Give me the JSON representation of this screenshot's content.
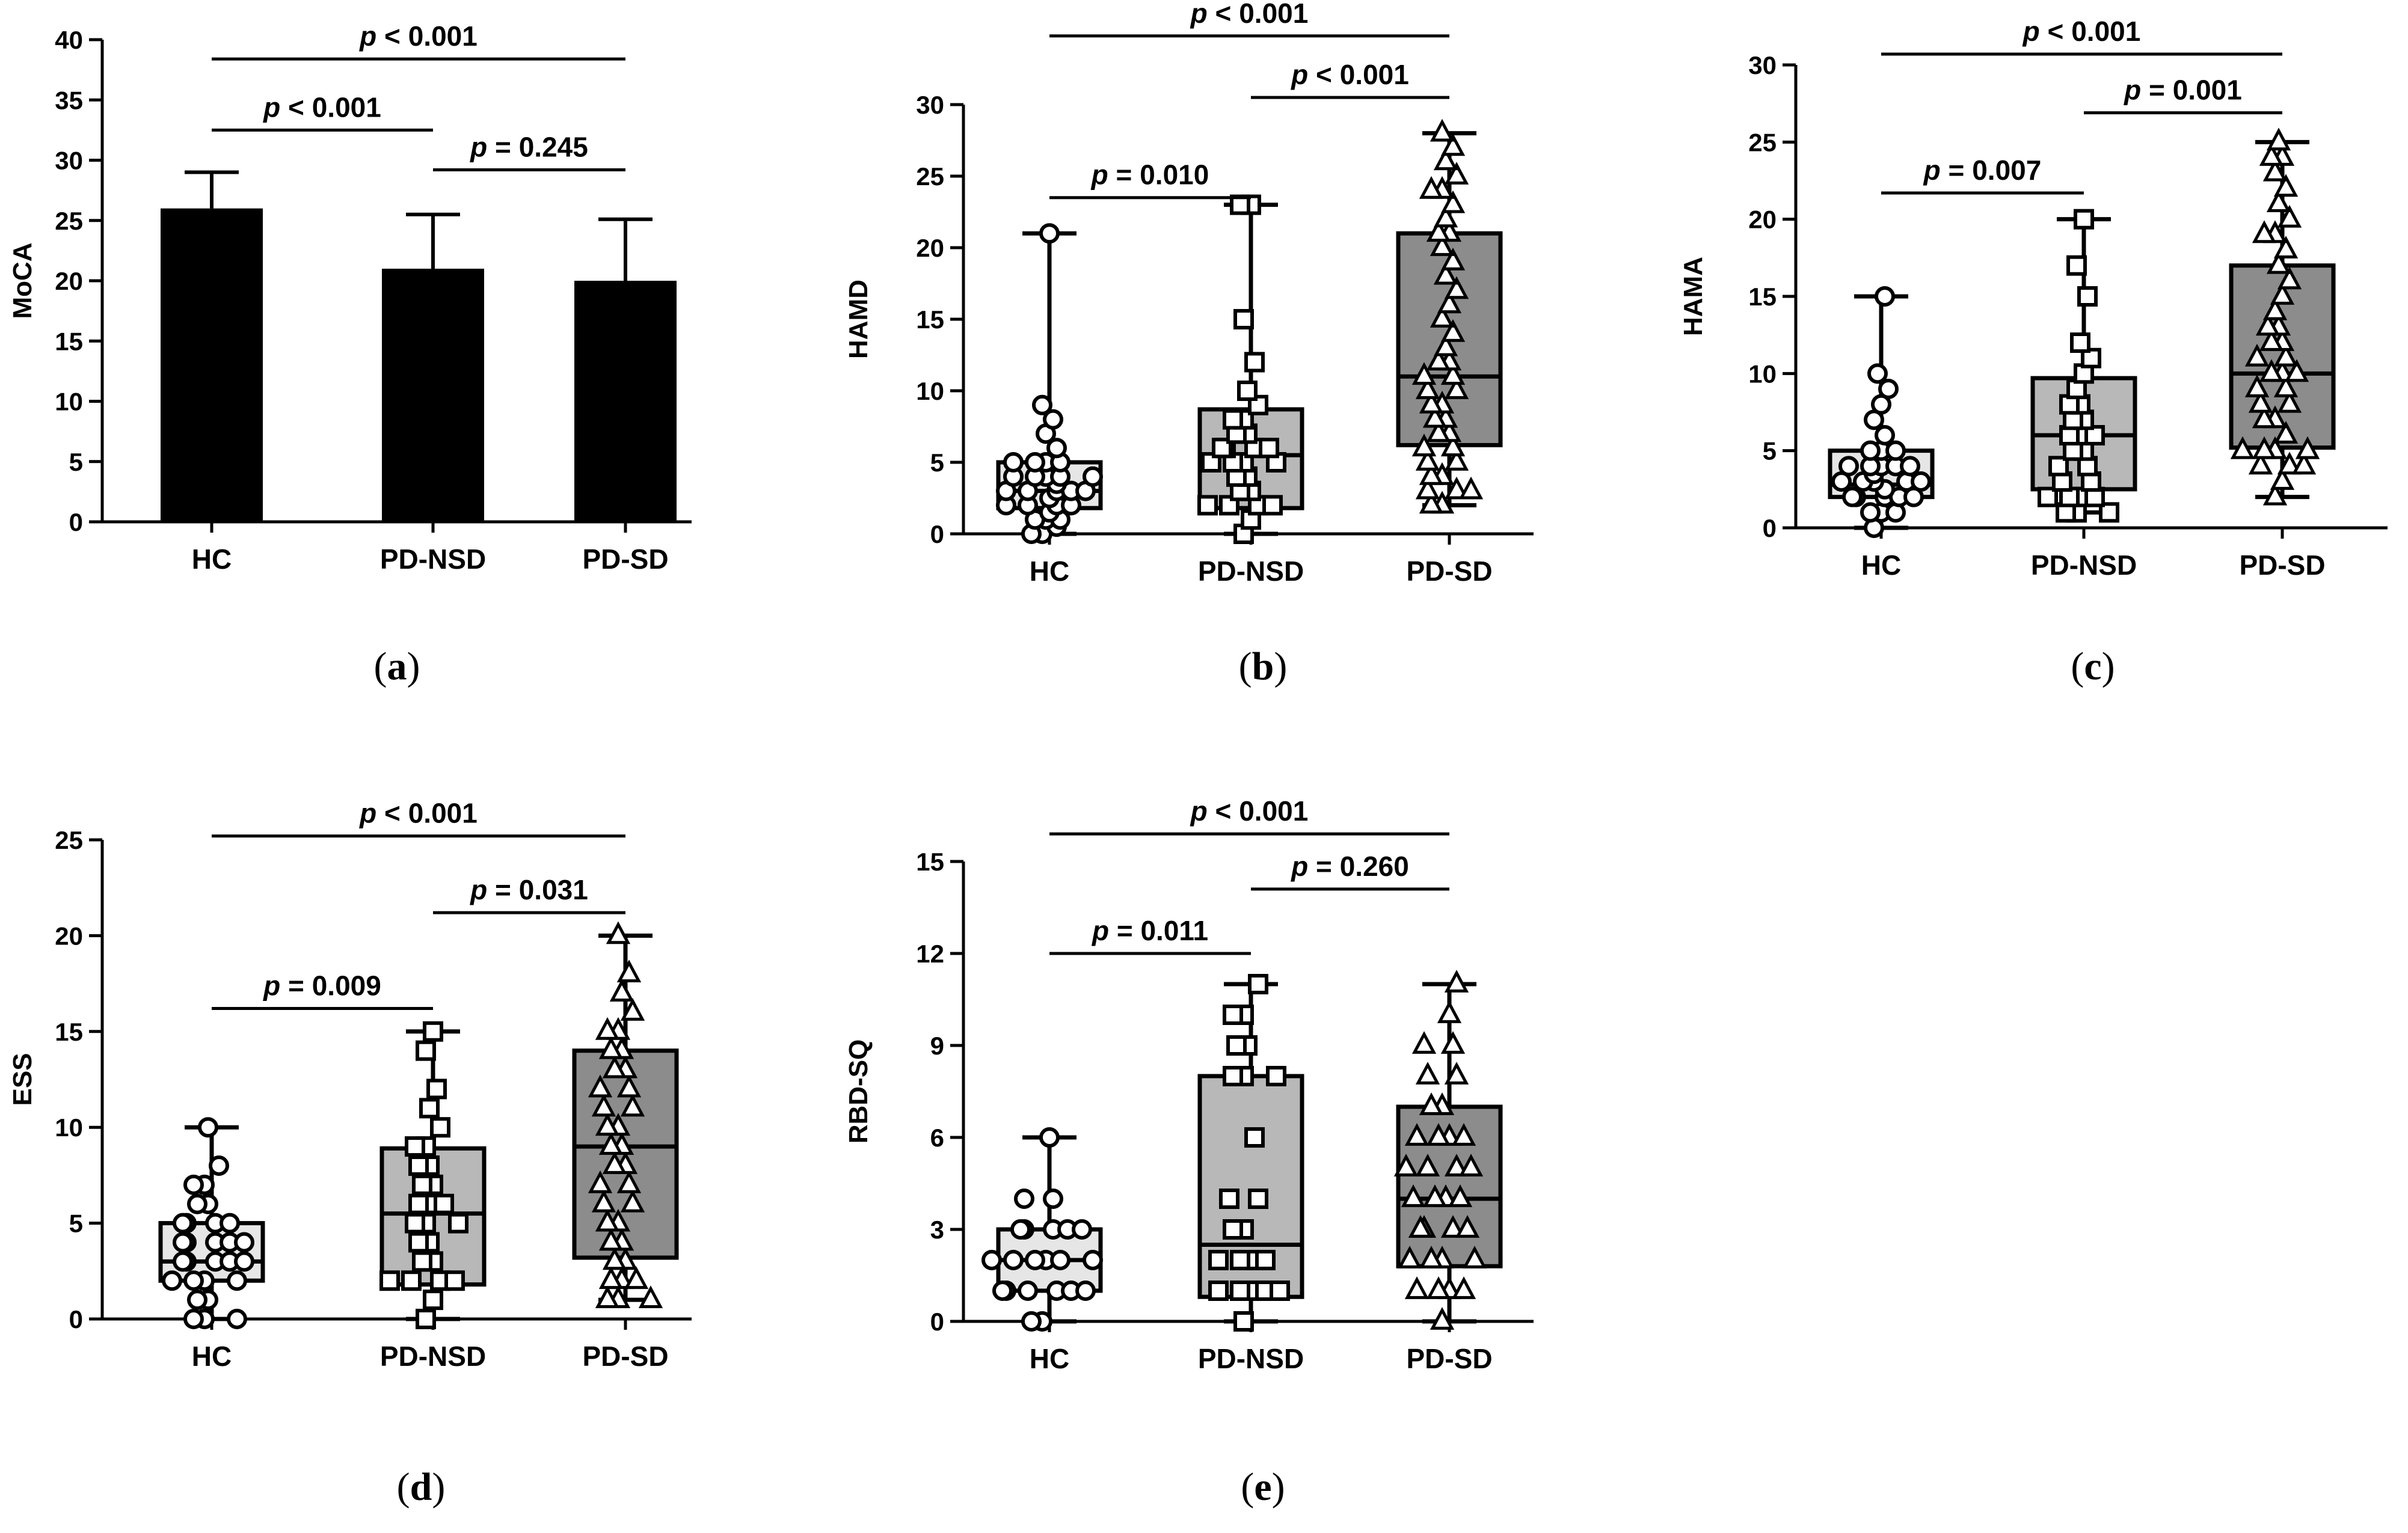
{
  "colors": {
    "hc": "#ffffff",
    "hc_box": "#e6e6e6",
    "pdnsd": "#b8b8b8",
    "pdsd": "#8c8c8c",
    "bar": "#000000",
    "ink": "#000000"
  },
  "chart_data": [
    {
      "id": "a",
      "panel_label": "(a)",
      "type": "bar",
      "title": "",
      "ylabel": "MoCA",
      "xlabel": "",
      "categories": [
        "HC",
        "PD-NSD",
        "PD-SD"
      ],
      "values": [
        26,
        21,
        20
      ],
      "errors": [
        3,
        4.5,
        5.1
      ],
      "ylim": [
        0,
        40
      ],
      "yticks": [
        0,
        5,
        10,
        15,
        20,
        25,
        30,
        35,
        40
      ],
      "comparisons": [
        {
          "from": 0,
          "to": 1,
          "y": 32.5,
          "label_prefix": "p",
          "label_rest": " < 0.001"
        },
        {
          "from": 1,
          "to": 2,
          "y": 29.2,
          "label_prefix": "p",
          "label_rest": " = 0.245"
        },
        {
          "from": 0,
          "to": 2,
          "y": 38.4,
          "label_prefix": "p",
          "label_rest": " < 0.001"
        }
      ]
    },
    {
      "id": "b",
      "panel_label": "(b)",
      "type": "box",
      "title": "",
      "ylabel": "HAMD",
      "xlabel": "",
      "categories": [
        "HC",
        "PD-NSD",
        "PD-SD"
      ],
      "ylim": [
        0,
        30
      ],
      "yticks": [
        0,
        5,
        10,
        15,
        20,
        25,
        30
      ],
      "boxes": [
        {
          "min": 0,
          "q1": 1.8,
          "median": 3,
          "q3": 5,
          "max": 21,
          "marker": "circle",
          "points": [
            0,
            0,
            0.5,
            1,
            1,
            1,
            1.5,
            2,
            2,
            2,
            2,
            2.5,
            3,
            3,
            3,
            3,
            3,
            3.5,
            4,
            4,
            4,
            4,
            4,
            5,
            5,
            5,
            5,
            6,
            7,
            8,
            9,
            21
          ]
        },
        {
          "min": 0,
          "q1": 1.8,
          "median": 5.5,
          "q3": 8.7,
          "max": 23,
          "marker": "square",
          "points": [
            0,
            1,
            2,
            2,
            2,
            2,
            3,
            3,
            4,
            4,
            5,
            5,
            5,
            5,
            6,
            6,
            6,
            6,
            7,
            7,
            8,
            8,
            9,
            10,
            12,
            15,
            23,
            23
          ]
        },
        {
          "min": 2,
          "q1": 6.2,
          "median": 11,
          "q3": 21,
          "max": 28,
          "marker": "triangle",
          "points": [
            2,
            2,
            3,
            3,
            3,
            4,
            4,
            5,
            5,
            6,
            6,
            7,
            7,
            8,
            8,
            9,
            9,
            10,
            10,
            11,
            11,
            12,
            12,
            13,
            14,
            15,
            16,
            17,
            18,
            19,
            20,
            21,
            21,
            22,
            23,
            24,
            24,
            25,
            26,
            27,
            28
          ]
        }
      ],
      "comparisons": [
        {
          "from": 0,
          "to": 1,
          "y": 23.5,
          "label_prefix": "p",
          "label_rest": " = 0.010"
        },
        {
          "from": 1,
          "to": 2,
          "y": 30.5,
          "label_prefix": "p",
          "label_rest": " < 0.001"
        },
        {
          "from": 0,
          "to": 2,
          "y": 34.8,
          "label_prefix": "p",
          "label_rest": " < 0.001"
        }
      ]
    },
    {
      "id": "c",
      "panel_label": "(c)",
      "type": "box",
      "title": "",
      "ylabel": "HAMA",
      "xlabel": "",
      "categories": [
        "HC",
        "PD-NSD",
        "PD-SD"
      ],
      "ylim": [
        0,
        30
      ],
      "yticks": [
        0,
        5,
        10,
        15,
        20,
        25,
        30
      ],
      "boxes": [
        {
          "min": 0,
          "q1": 2,
          "median": 2.8,
          "q3": 5,
          "max": 15,
          "marker": "circle",
          "points": [
            0,
            1,
            1,
            1,
            2,
            2,
            2,
            2,
            2,
            2.5,
            3,
            3,
            3,
            3,
            3,
            3.5,
            4,
            4,
            4,
            4,
            4,
            5,
            5,
            5,
            6,
            7,
            8,
            9,
            10,
            15
          ]
        },
        {
          "min": 1,
          "q1": 2.5,
          "median": 6,
          "q3": 9.7,
          "max": 20,
          "marker": "square",
          "points": [
            1,
            1,
            1,
            2,
            2,
            2,
            2,
            3,
            3,
            4,
            4,
            5,
            5,
            6,
            6,
            6,
            7,
            7,
            8,
            8,
            9,
            10,
            11,
            12,
            15,
            17,
            20
          ]
        },
        {
          "min": 2,
          "q1": 5.2,
          "median": 10,
          "q3": 17,
          "max": 25,
          "marker": "triangle",
          "points": [
            2,
            3,
            4,
            4,
            4,
            5,
            5,
            5,
            5,
            6,
            7,
            7,
            8,
            8,
            9,
            9,
            10,
            10,
            10,
            11,
            11,
            12,
            12,
            13,
            13,
            14,
            15,
            16,
            17,
            18,
            19,
            19,
            20,
            21,
            22,
            23,
            24,
            24,
            25
          ]
        }
      ],
      "comparisons": [
        {
          "from": 0,
          "to": 1,
          "y": 21.7,
          "label_prefix": "p",
          "label_rest": " = 0.007"
        },
        {
          "from": 1,
          "to": 2,
          "y": 26.9,
          "label_prefix": "p",
          "label_rest": " = 0.001"
        },
        {
          "from": 0,
          "to": 2,
          "y": 30.7,
          "label_prefix": "p",
          "label_rest": " < 0.001"
        }
      ]
    },
    {
      "id": "d",
      "panel_label": "(d)",
      "type": "box",
      "title": "",
      "ylabel": "ESS",
      "xlabel": "",
      "categories": [
        "HC",
        "PD-NSD",
        "PD-SD"
      ],
      "ylim": [
        0,
        25
      ],
      "yticks": [
        0,
        5,
        10,
        15,
        20,
        25
      ],
      "boxes": [
        {
          "min": 0,
          "q1": 2,
          "median": 3,
          "q3": 5,
          "max": 10,
          "marker": "circle",
          "points": [
            0,
            0,
            0,
            1,
            1,
            2,
            2,
            2,
            2,
            3,
            3,
            3,
            3,
            3,
            4,
            4,
            4,
            4,
            4,
            5,
            5,
            5,
            5,
            6,
            6,
            7,
            7,
            8,
            10
          ]
        },
        {
          "min": 0,
          "q1": 1.8,
          "median": 5.5,
          "q3": 8.9,
          "max": 15,
          "marker": "square",
          "points": [
            0,
            1,
            2,
            2,
            2,
            2,
            3,
            3,
            4,
            4,
            5,
            5,
            5,
            6,
            6,
            6,
            7,
            7,
            8,
            8,
            9,
            9,
            10,
            11,
            12,
            14,
            15
          ]
        },
        {
          "min": 1,
          "q1": 3.2,
          "median": 9,
          "q3": 14,
          "max": 20,
          "marker": "triangle",
          "points": [
            1,
            1,
            1,
            2,
            2,
            2,
            3,
            3,
            4,
            4,
            5,
            5,
            6,
            6,
            7,
            7,
            8,
            8,
            9,
            9,
            10,
            10,
            11,
            11,
            12,
            12,
            13,
            13,
            14,
            14,
            15,
            15,
            16,
            17,
            18,
            20
          ]
        }
      ],
      "comparisons": [
        {
          "from": 0,
          "to": 1,
          "y": 16.2,
          "label_prefix": "p",
          "label_rest": " = 0.009"
        },
        {
          "from": 1,
          "to": 2,
          "y": 21.2,
          "label_prefix": "p",
          "label_rest": " = 0.031"
        },
        {
          "from": 0,
          "to": 2,
          "y": 25.2,
          "label_prefix": "p",
          "label_rest": " < 0.001"
        }
      ]
    },
    {
      "id": "e",
      "panel_label": "(e)",
      "type": "box",
      "title": "",
      "ylabel": "RBD-SQ",
      "xlabel": "",
      "categories": [
        "HC",
        "PD-NSD",
        "PD-SD"
      ],
      "ylim": [
        0,
        15
      ],
      "yticks": [
        0,
        3,
        6,
        9,
        12,
        15
      ],
      "boxes": [
        {
          "min": 0,
          "q1": 1,
          "median": 2,
          "q3": 3,
          "max": 6,
          "marker": "circle",
          "points": [
            0,
            0,
            1,
            1,
            1,
            1,
            1,
            1,
            2,
            2,
            2,
            2,
            2,
            2,
            3,
            3,
            3,
            3,
            3,
            4,
            4,
            6
          ]
        },
        {
          "min": 0,
          "q1": 0.8,
          "median": 2.5,
          "q3": 8,
          "max": 11,
          "marker": "square",
          "points": [
            0,
            1,
            1,
            1,
            1,
            1,
            2,
            2,
            2,
            2,
            3,
            3,
            4,
            4,
            6,
            8,
            8,
            8,
            9,
            9,
            10,
            10,
            11
          ]
        },
        {
          "min": 0,
          "q1": 1.8,
          "median": 4,
          "q3": 7,
          "max": 11,
          "marker": "triangle",
          "points": [
            0,
            1,
            1,
            1,
            1,
            2,
            2,
            2,
            2,
            3,
            3,
            3,
            3,
            4,
            4,
            4,
            4,
            5,
            5,
            5,
            5,
            6,
            6,
            6,
            6,
            7,
            7,
            8,
            8,
            9,
            9,
            10,
            11
          ]
        }
      ],
      "comparisons": [
        {
          "from": 0,
          "to": 1,
          "y": 12,
          "label_prefix": "p",
          "label_rest": " = 0.011"
        },
        {
          "from": 1,
          "to": 2,
          "y": 14.1,
          "label_prefix": "p",
          "label_rest": " = 0.260"
        },
        {
          "from": 0,
          "to": 2,
          "y": 15.9,
          "label_prefix": "p",
          "label_rest": " < 0.001"
        }
      ]
    }
  ]
}
